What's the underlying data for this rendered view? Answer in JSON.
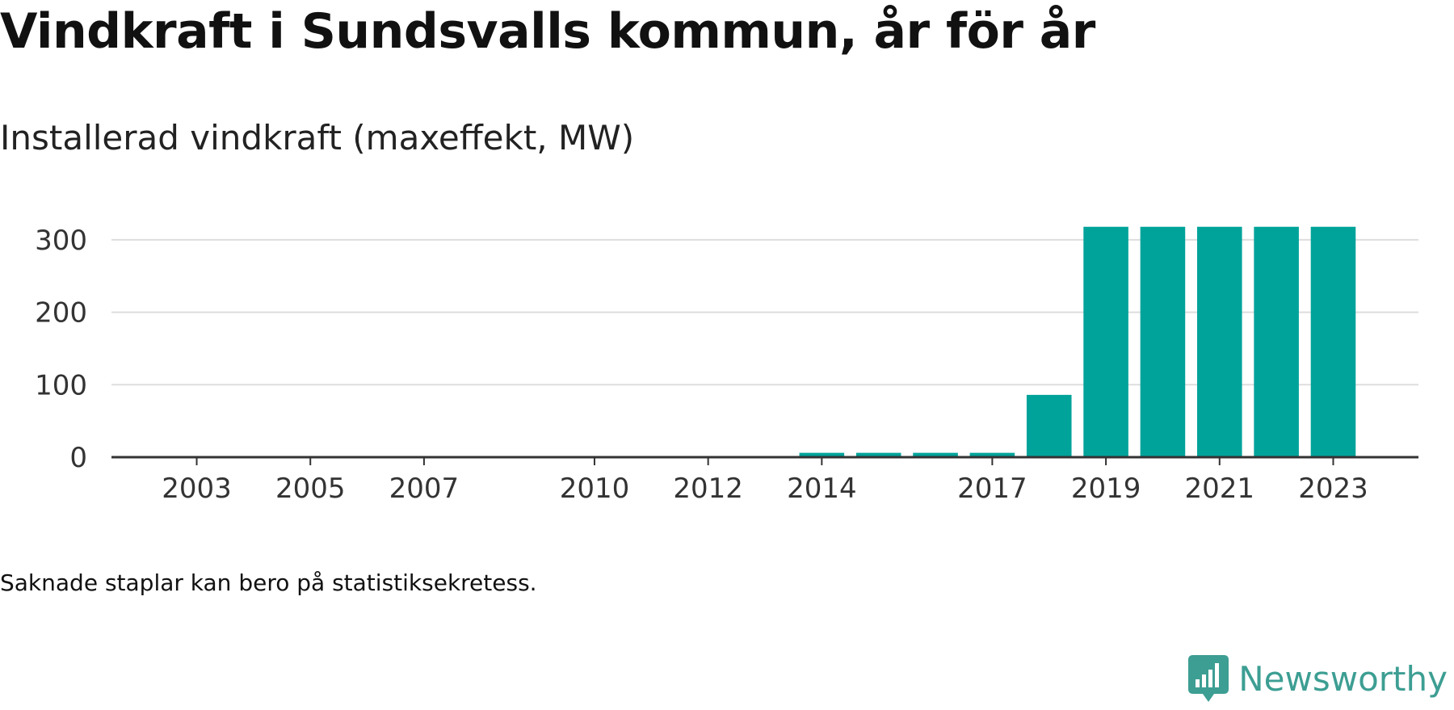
{
  "title": "Vindkraft i Sundsvalls kommun, år för år",
  "subtitle": "Installerad vindkraft (maxeffekt, MW)",
  "note": "Saknade staplar kan bero på statistiksekretess.",
  "brand": {
    "name": "Newsworthy",
    "icon": "newsworthy-logo-icon",
    "color": "#3d9e93"
  },
  "chart_data": {
    "type": "bar",
    "x": [
      2003,
      2004,
      2005,
      2006,
      2007,
      2008,
      2009,
      2010,
      2011,
      2012,
      2013,
      2014,
      2015,
      2016,
      2017,
      2018,
      2019,
      2020,
      2021,
      2022,
      2023
    ],
    "values": [
      0,
      0,
      0,
      0,
      0,
      0,
      0,
      0,
      0,
      0,
      0,
      6,
      6,
      6,
      6,
      86,
      318,
      318,
      318,
      318,
      318
    ],
    "xticks": [
      2003,
      2005,
      2007,
      2010,
      2012,
      2014,
      2017,
      2019,
      2021,
      2023
    ],
    "yticks": [
      0,
      100,
      200,
      300
    ],
    "ylim": [
      0,
      330
    ],
    "xlim": [
      2001.5,
      2024.5
    ],
    "bar_color": "#00a39a",
    "grid": true,
    "legend": "none"
  }
}
